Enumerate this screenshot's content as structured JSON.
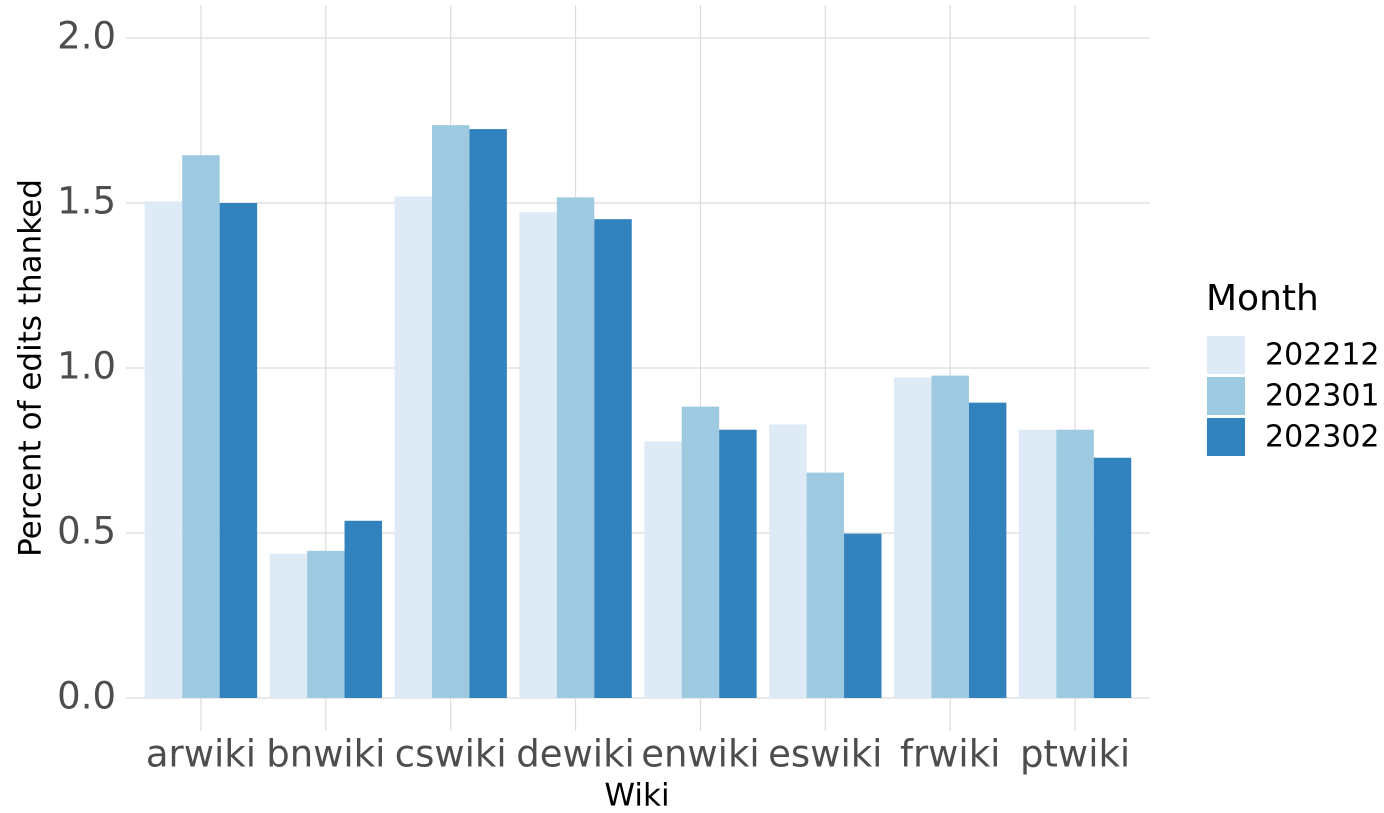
{
  "chart_data": {
    "type": "bar",
    "x_label": "Wiki",
    "y_label": "Percent of edits thanked",
    "legend_title": "Month",
    "legend_position": "right",
    "categories": [
      "arwiki",
      "bnwiki",
      "cswiki",
      "dewiki",
      "enwiki",
      "eswiki",
      "frwiki",
      "ptwiki"
    ],
    "series": [
      {
        "name": "202212",
        "color": "#deebf7",
        "values": [
          1.505,
          0.437,
          1.52,
          1.472,
          0.777,
          0.829,
          0.971,
          0.813
        ]
      },
      {
        "name": "202301",
        "color": "#9ecae1",
        "values": [
          1.645,
          0.446,
          1.736,
          1.517,
          0.883,
          0.683,
          0.977,
          0.813
        ]
      },
      {
        "name": "202302",
        "color": "#3182bd",
        "values": [
          1.5,
          0.537,
          1.724,
          1.451,
          0.813,
          0.498,
          0.895,
          0.728
        ]
      }
    ],
    "ylim": [
      -0.1,
      2.1
    ],
    "yticks": [
      {
        "value": 0,
        "label": "0.0"
      },
      0.5,
      {
        "value": 1,
        "label": "1.0"
      },
      1.5,
      {
        "value": 2,
        "label": "2.0"
      }
    ],
    "grid": true
  }
}
